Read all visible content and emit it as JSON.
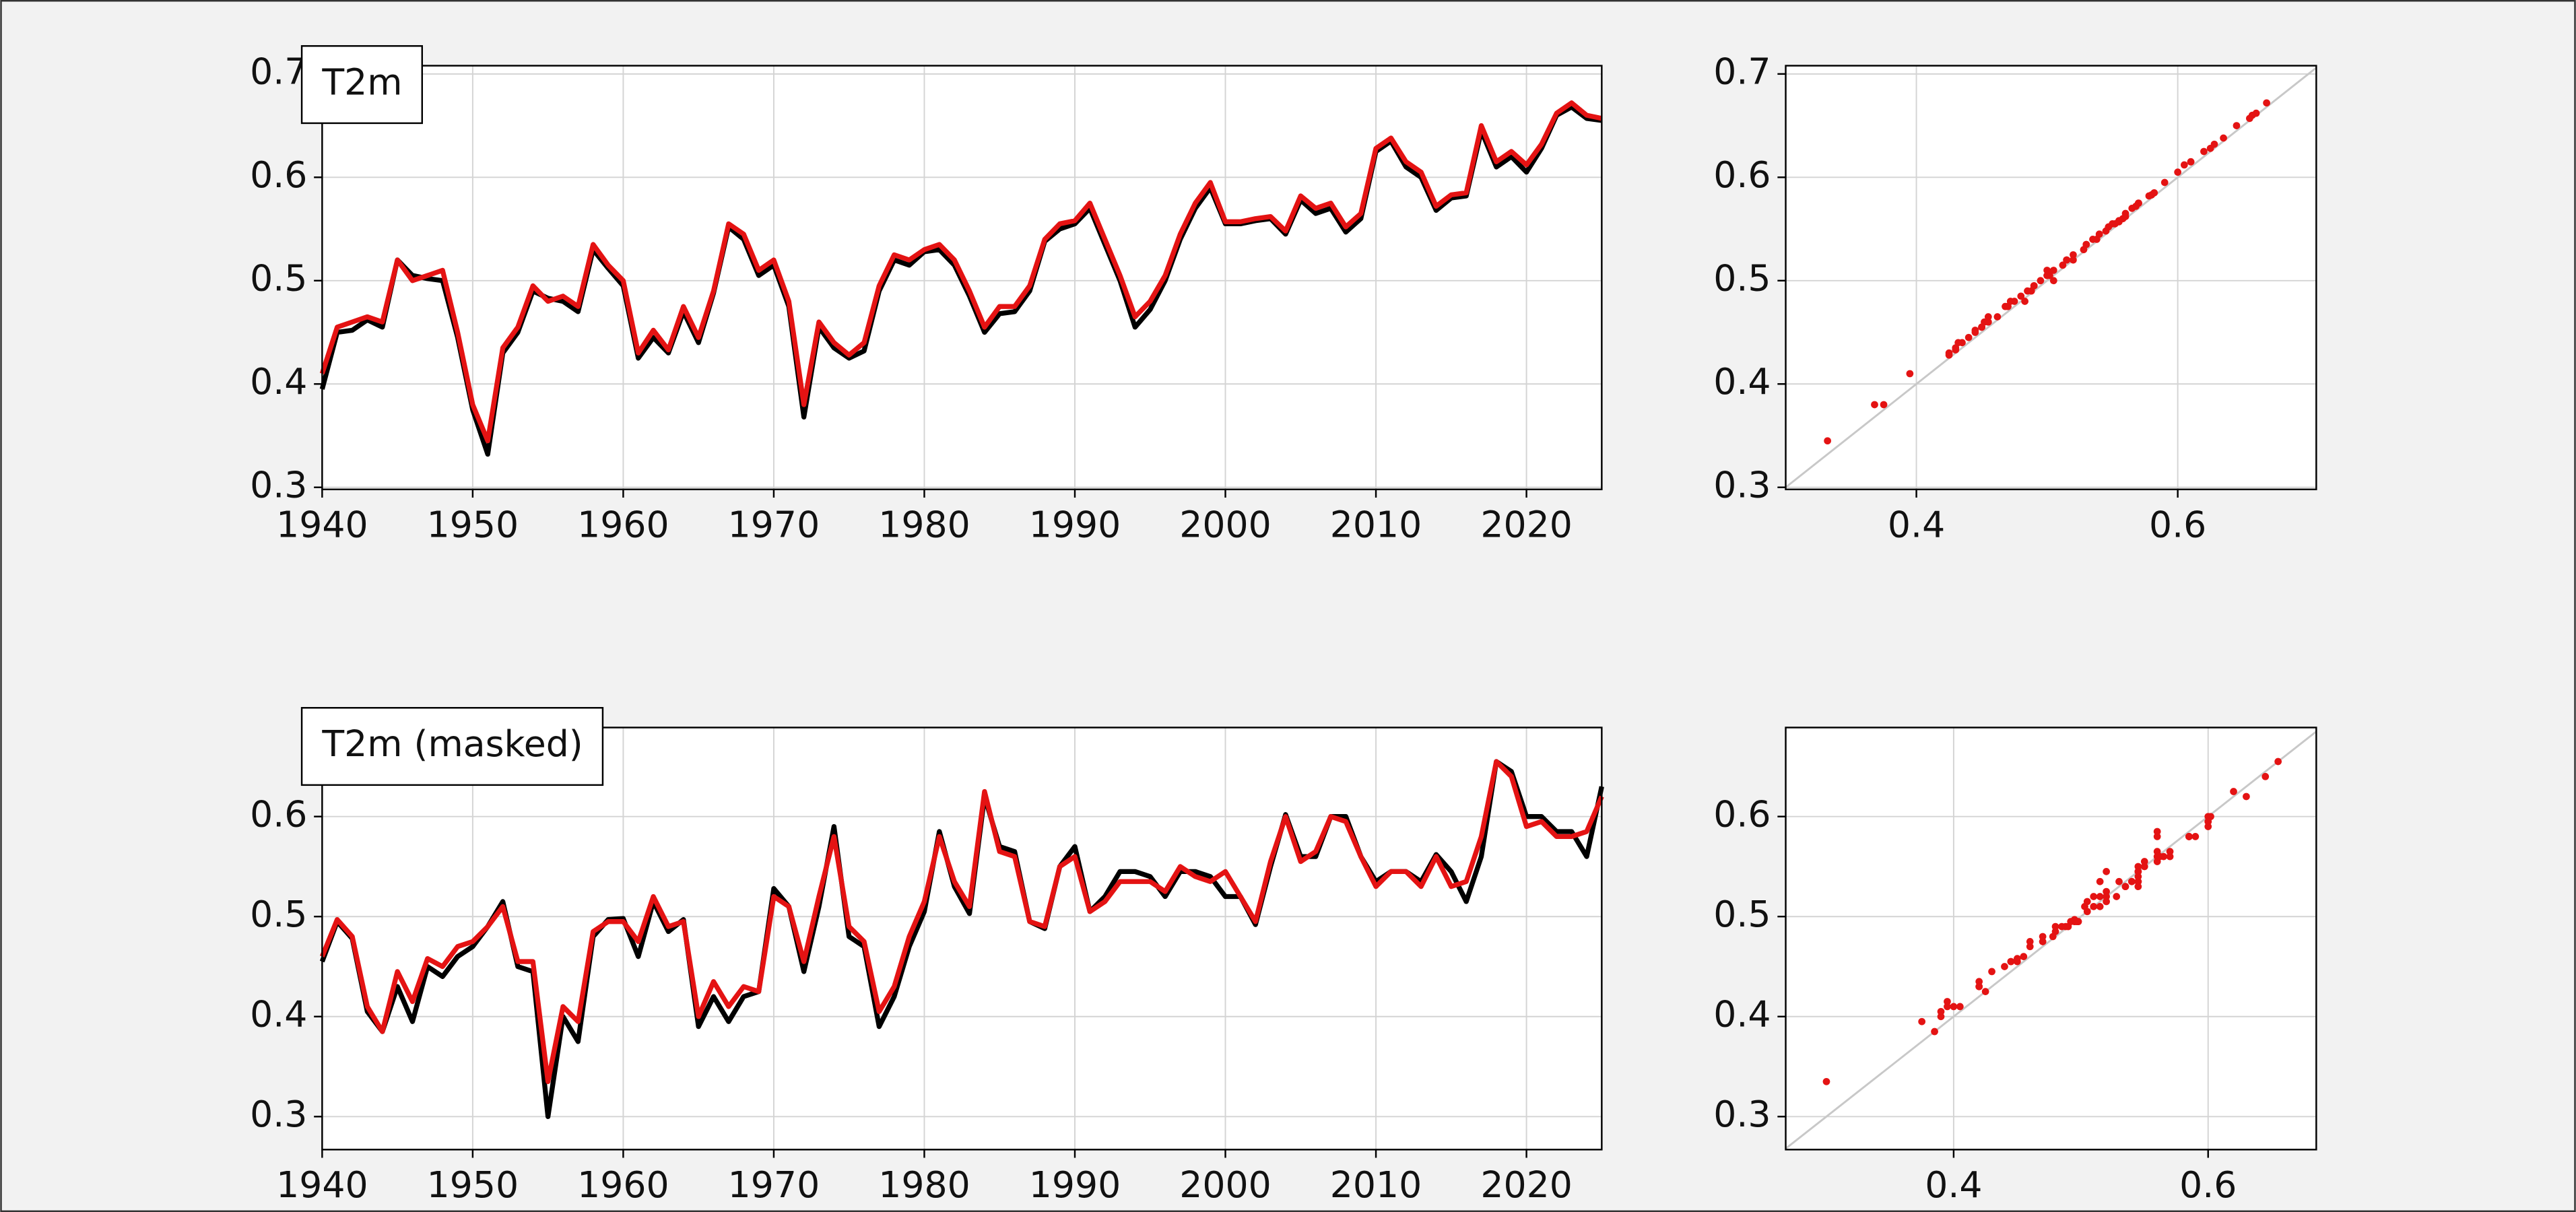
{
  "chart_data": [
    {
      "type": "line",
      "annotation": "T2m",
      "x": [
        1940,
        1941,
        1942,
        1943,
        1944,
        1945,
        1946,
        1947,
        1948,
        1949,
        1950,
        1951,
        1952,
        1953,
        1954,
        1955,
        1956,
        1957,
        1958,
        1959,
        1960,
        1961,
        1962,
        1963,
        1964,
        1965,
        1966,
        1967,
        1968,
        1969,
        1970,
        1971,
        1972,
        1973,
        1974,
        1975,
        1976,
        1977,
        1978,
        1979,
        1980,
        1981,
        1982,
        1983,
        1984,
        1985,
        1986,
        1987,
        1988,
        1989,
        1990,
        1991,
        1992,
        1993,
        1994,
        1995,
        1996,
        1997,
        1998,
        1999,
        2000,
        2001,
        2002,
        2003,
        2004,
        2005,
        2006,
        2007,
        2008,
        2009,
        2010,
        2011,
        2012,
        2013,
        2014,
        2015,
        2016,
        2017,
        2018,
        2019,
        2020,
        2021,
        2022,
        2023,
        2024,
        2025
      ],
      "series": [
        {
          "color": "#000000",
          "values": [
            0.395,
            0.45,
            0.452,
            0.462,
            0.455,
            0.52,
            0.505,
            0.502,
            0.5,
            0.445,
            0.375,
            0.332,
            0.43,
            0.45,
            0.49,
            0.483,
            0.48,
            0.47,
            0.53,
            0.512,
            0.495,
            0.425,
            0.445,
            0.43,
            0.47,
            0.44,
            0.488,
            0.552,
            0.54,
            0.505,
            0.515,
            0.475,
            0.368,
            0.455,
            0.435,
            0.425,
            0.432,
            0.49,
            0.52,
            0.515,
            0.528,
            0.53,
            0.515,
            0.485,
            0.45,
            0.468,
            0.47,
            0.49,
            0.538,
            0.55,
            0.555,
            0.57,
            0.535,
            0.5,
            0.455,
            0.472,
            0.5,
            0.54,
            0.57,
            0.59,
            0.555,
            0.555,
            0.558,
            0.56,
            0.545,
            0.578,
            0.565,
            0.57,
            0.547,
            0.56,
            0.625,
            0.635,
            0.61,
            0.6,
            0.568,
            0.58,
            0.582,
            0.645,
            0.61,
            0.62,
            0.605,
            0.628,
            0.66,
            0.668,
            0.657,
            0.655
          ]
        },
        {
          "color": "#e41313",
          "values": [
            0.41,
            0.455,
            0.46,
            0.465,
            0.46,
            0.52,
            0.5,
            0.505,
            0.51,
            0.45,
            0.38,
            0.345,
            0.435,
            0.455,
            0.495,
            0.48,
            0.485,
            0.475,
            0.535,
            0.515,
            0.5,
            0.43,
            0.452,
            0.433,
            0.475,
            0.445,
            0.49,
            0.555,
            0.545,
            0.51,
            0.52,
            0.48,
            0.38,
            0.46,
            0.44,
            0.428,
            0.44,
            0.495,
            0.525,
            0.52,
            0.53,
            0.535,
            0.52,
            0.49,
            0.455,
            0.475,
            0.475,
            0.495,
            0.54,
            0.555,
            0.558,
            0.575,
            0.54,
            0.505,
            0.465,
            0.48,
            0.505,
            0.545,
            0.575,
            0.595,
            0.557,
            0.557,
            0.56,
            0.562,
            0.548,
            0.582,
            0.57,
            0.575,
            0.552,
            0.565,
            0.628,
            0.638,
            0.615,
            0.605,
            0.572,
            0.583,
            0.585,
            0.65,
            0.615,
            0.625,
            0.612,
            0.632,
            0.662,
            0.672,
            0.66,
            0.657
          ]
        }
      ],
      "xlim": [
        1940,
        2025
      ],
      "xticks": [
        1940,
        1950,
        1960,
        1970,
        1980,
        1990,
        2000,
        2010,
        2020
      ],
      "ylim": [
        0.298,
        0.708
      ],
      "yticks": [
        0.3,
        0.4,
        0.5,
        0.6,
        0.7
      ],
      "grid": true
    },
    {
      "type": "scatter",
      "color": "#e41313",
      "diagonal": true,
      "diagonal_color": "#c8c8c8",
      "x": [
        0.395,
        0.45,
        0.452,
        0.462,
        0.455,
        0.52,
        0.505,
        0.502,
        0.5,
        0.445,
        0.375,
        0.332,
        0.43,
        0.45,
        0.49,
        0.483,
        0.48,
        0.47,
        0.53,
        0.512,
        0.495,
        0.425,
        0.445,
        0.43,
        0.47,
        0.44,
        0.488,
        0.552,
        0.54,
        0.505,
        0.515,
        0.475,
        0.368,
        0.455,
        0.435,
        0.425,
        0.432,
        0.49,
        0.52,
        0.515,
        0.528,
        0.53,
        0.515,
        0.485,
        0.45,
        0.468,
        0.47,
        0.49,
        0.538,
        0.55,
        0.555,
        0.57,
        0.535,
        0.5,
        0.455,
        0.472,
        0.5,
        0.54,
        0.57,
        0.59,
        0.555,
        0.555,
        0.558,
        0.56,
        0.545,
        0.578,
        0.565,
        0.57,
        0.547,
        0.56,
        0.625,
        0.635,
        0.61,
        0.6,
        0.568,
        0.58,
        0.582,
        0.645,
        0.61,
        0.62,
        0.605,
        0.628,
        0.66,
        0.668,
        0.657,
        0.655
      ],
      "y": [
        0.41,
        0.455,
        0.46,
        0.465,
        0.46,
        0.52,
        0.5,
        0.505,
        0.51,
        0.45,
        0.38,
        0.345,
        0.435,
        0.455,
        0.495,
        0.48,
        0.485,
        0.475,
        0.535,
        0.515,
        0.5,
        0.43,
        0.452,
        0.433,
        0.475,
        0.445,
        0.49,
        0.555,
        0.545,
        0.51,
        0.52,
        0.48,
        0.38,
        0.46,
        0.44,
        0.428,
        0.44,
        0.495,
        0.525,
        0.52,
        0.53,
        0.535,
        0.52,
        0.49,
        0.455,
        0.475,
        0.475,
        0.495,
        0.54,
        0.555,
        0.558,
        0.575,
        0.54,
        0.505,
        0.465,
        0.48,
        0.505,
        0.545,
        0.575,
        0.595,
        0.557,
        0.557,
        0.56,
        0.562,
        0.548,
        0.582,
        0.57,
        0.575,
        0.552,
        0.565,
        0.628,
        0.638,
        0.615,
        0.605,
        0.572,
        0.583,
        0.585,
        0.65,
        0.615,
        0.625,
        0.612,
        0.632,
        0.662,
        0.672,
        0.66,
        0.657
      ],
      "xlim": [
        0.3,
        0.706
      ],
      "xticks": [
        0.4,
        0.6
      ],
      "ylim": [
        0.298,
        0.708
      ],
      "yticks": [
        0.3,
        0.4,
        0.5,
        0.6,
        0.7
      ],
      "grid": true
    },
    {
      "type": "line",
      "annotation": "T2m (masked)",
      "x": [
        1940,
        1941,
        1942,
        1943,
        1944,
        1945,
        1946,
        1947,
        1948,
        1949,
        1950,
        1951,
        1952,
        1953,
        1954,
        1955,
        1956,
        1957,
        1958,
        1959,
        1960,
        1961,
        1962,
        1963,
        1964,
        1965,
        1966,
        1967,
        1968,
        1969,
        1970,
        1971,
        1972,
        1973,
        1974,
        1975,
        1976,
        1977,
        1978,
        1979,
        1980,
        1981,
        1982,
        1983,
        1984,
        1985,
        1986,
        1987,
        1988,
        1989,
        1990,
        1991,
        1992,
        1993,
        1994,
        1995,
        1996,
        1997,
        1998,
        1999,
        2000,
        2001,
        2002,
        2003,
        2004,
        2005,
        2006,
        2007,
        2008,
        2009,
        2010,
        2011,
        2012,
        2013,
        2014,
        2015,
        2016,
        2017,
        2018,
        2019,
        2020,
        2021,
        2022,
        2023,
        2024,
        2025
      ],
      "series": [
        {
          "color": "#000000",
          "values": [
            0.455,
            0.495,
            0.478,
            0.405,
            0.385,
            0.43,
            0.395,
            0.45,
            0.44,
            0.46,
            0.47,
            0.49,
            0.515,
            0.45,
            0.445,
            0.3,
            0.4,
            0.375,
            0.48,
            0.497,
            0.498,
            0.46,
            0.515,
            0.485,
            0.497,
            0.39,
            0.42,
            0.395,
            0.42,
            0.425,
            0.528,
            0.51,
            0.445,
            0.51,
            0.59,
            0.48,
            0.47,
            0.39,
            0.42,
            0.47,
            0.505,
            0.585,
            0.53,
            0.503,
            0.62,
            0.57,
            0.565,
            0.495,
            0.488,
            0.55,
            0.57,
            0.505,
            0.52,
            0.545,
            0.545,
            0.54,
            0.52,
            0.545,
            0.545,
            0.54,
            0.52,
            0.52,
            0.492,
            0.55,
            0.602,
            0.56,
            0.56,
            0.6,
            0.6,
            0.56,
            0.535,
            0.545,
            0.545,
            0.535,
            0.562,
            0.545,
            0.515,
            0.56,
            0.655,
            0.645,
            0.6,
            0.6,
            0.585,
            0.585,
            0.56,
            0.63
          ]
        },
        {
          "color": "#e41313",
          "values": [
            0.46,
            0.497,
            0.48,
            0.41,
            0.385,
            0.445,
            0.415,
            0.458,
            0.45,
            0.47,
            0.475,
            0.49,
            0.51,
            0.455,
            0.455,
            0.335,
            0.41,
            0.395,
            0.485,
            0.495,
            0.495,
            0.475,
            0.52,
            0.49,
            0.495,
            0.4,
            0.435,
            0.41,
            0.43,
            0.425,
            0.52,
            0.51,
            0.455,
            0.52,
            0.58,
            0.49,
            0.475,
            0.405,
            0.43,
            0.48,
            0.515,
            0.58,
            0.535,
            0.51,
            0.625,
            0.565,
            0.56,
            0.495,
            0.49,
            0.55,
            0.56,
            0.505,
            0.515,
            0.535,
            0.535,
            0.535,
            0.525,
            0.55,
            0.54,
            0.535,
            0.545,
            0.52,
            0.495,
            0.555,
            0.6,
            0.555,
            0.565,
            0.6,
            0.595,
            0.56,
            0.53,
            0.545,
            0.545,
            0.53,
            0.56,
            0.53,
            0.535,
            0.58,
            0.655,
            0.64,
            0.59,
            0.595,
            0.58,
            0.58,
            0.585,
            0.62
          ]
        }
      ],
      "xlim": [
        1940,
        2025
      ],
      "xticks": [
        1940,
        1950,
        1960,
        1970,
        1980,
        1990,
        2000,
        2010,
        2020
      ],
      "ylim": [
        0.267,
        0.689
      ],
      "yticks": [
        0.3,
        0.4,
        0.5,
        0.6
      ],
      "grid": true
    },
    {
      "type": "scatter",
      "color": "#e41313",
      "diagonal": true,
      "diagonal_color": "#c8c8c8",
      "x": [
        0.455,
        0.495,
        0.478,
        0.405,
        0.385,
        0.43,
        0.395,
        0.45,
        0.44,
        0.46,
        0.47,
        0.49,
        0.515,
        0.45,
        0.445,
        0.3,
        0.4,
        0.375,
        0.48,
        0.497,
        0.498,
        0.46,
        0.515,
        0.485,
        0.497,
        0.39,
        0.42,
        0.395,
        0.42,
        0.425,
        0.528,
        0.51,
        0.445,
        0.51,
        0.59,
        0.48,
        0.47,
        0.39,
        0.42,
        0.47,
        0.505,
        0.585,
        0.53,
        0.503,
        0.62,
        0.57,
        0.565,
        0.495,
        0.488,
        0.55,
        0.57,
        0.505,
        0.52,
        0.545,
        0.545,
        0.54,
        0.52,
        0.545,
        0.545,
        0.54,
        0.52,
        0.52,
        0.492,
        0.55,
        0.602,
        0.56,
        0.56,
        0.6,
        0.6,
        0.56,
        0.535,
        0.545,
        0.545,
        0.535,
        0.562,
        0.545,
        0.515,
        0.56,
        0.655,
        0.645,
        0.6,
        0.6,
        0.585,
        0.585,
        0.56,
        0.63
      ],
      "y": [
        0.46,
        0.497,
        0.48,
        0.41,
        0.385,
        0.445,
        0.415,
        0.458,
        0.45,
        0.47,
        0.475,
        0.49,
        0.51,
        0.455,
        0.455,
        0.335,
        0.41,
        0.395,
        0.485,
        0.495,
        0.495,
        0.475,
        0.52,
        0.49,
        0.495,
        0.4,
        0.435,
        0.41,
        0.43,
        0.425,
        0.52,
        0.51,
        0.455,
        0.52,
        0.58,
        0.49,
        0.475,
        0.405,
        0.43,
        0.48,
        0.515,
        0.58,
        0.535,
        0.51,
        0.625,
        0.565,
        0.56,
        0.495,
        0.49,
        0.55,
        0.56,
        0.505,
        0.515,
        0.535,
        0.535,
        0.535,
        0.525,
        0.55,
        0.54,
        0.535,
        0.545,
        0.52,
        0.495,
        0.555,
        0.6,
        0.555,
        0.565,
        0.6,
        0.595,
        0.56,
        0.53,
        0.545,
        0.545,
        0.53,
        0.56,
        0.53,
        0.535,
        0.58,
        0.655,
        0.64,
        0.59,
        0.595,
        0.58,
        0.58,
        0.585,
        0.62
      ],
      "xlim": [
        0.268,
        0.685
      ],
      "xticks": [
        0.4,
        0.6
      ],
      "ylim": [
        0.267,
        0.689
      ],
      "yticks": [
        0.3,
        0.4,
        0.5,
        0.6
      ],
      "grid": true
    }
  ]
}
